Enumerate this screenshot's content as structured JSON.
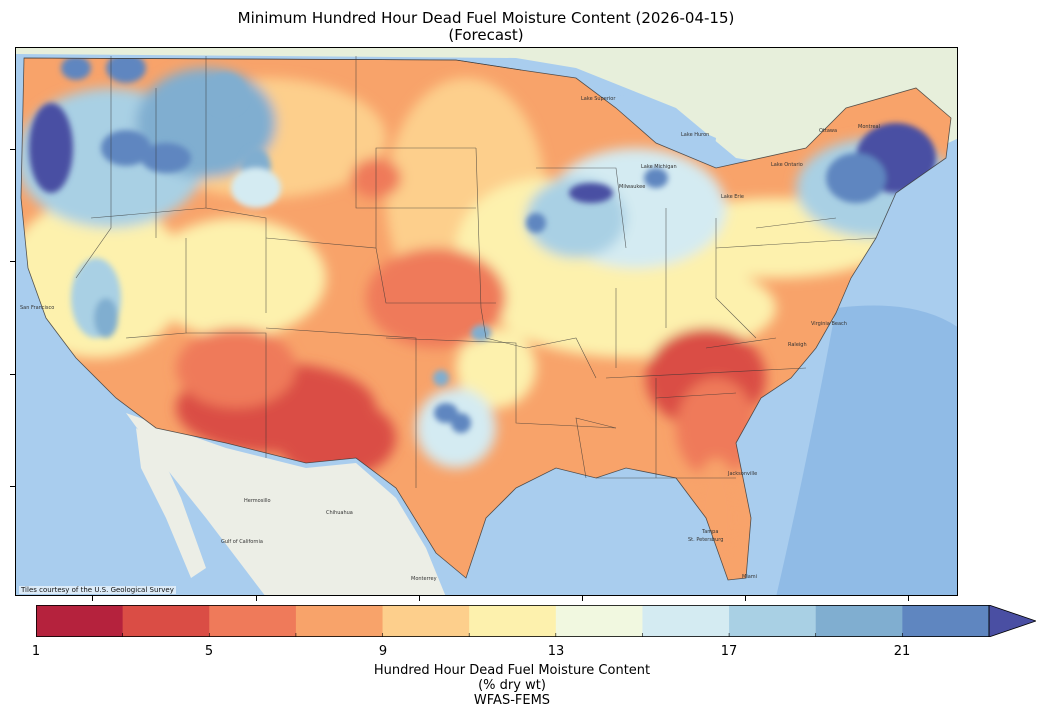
{
  "title": {
    "line1": "Minimum Hundred Hour Dead Fuel Moisture Content (2026-04-15)",
    "line2": "(Forecast)"
  },
  "map": {
    "credit": "Tiles courtesy of the U.S. Geological Survey",
    "place_labels": [
      "Hermosillo",
      "Chihuahua",
      "Monterrey",
      "Gulf of California",
      "Lake Superior",
      "Lake Michigan",
      "Lake Huron",
      "Lake Erie",
      "Lake Ontario",
      "Ottawa",
      "Montreal",
      "Milwaukee",
      "Jacksonville",
      "Tampa",
      "St. Petersburg",
      "Miami",
      "Virginia Beach",
      "Raleigh",
      "San Francisco"
    ],
    "colors": {
      "ocean": "#a9cdee",
      "land_mexico": "#eceee6",
      "land_canada": "#e7efdb",
      "great_lakes": "#a9cdee"
    }
  },
  "colorbar": {
    "ticks": [
      "1",
      "5",
      "9",
      "13",
      "17",
      "21"
    ],
    "bins": [
      {
        "from": 1,
        "to": 3,
        "color": "#b5223d"
      },
      {
        "from": 3,
        "to": 5,
        "color": "#da4d45"
      },
      {
        "from": 5,
        "to": 7,
        "color": "#ef7a5a"
      },
      {
        "from": 7,
        "to": 9,
        "color": "#f8a36a"
      },
      {
        "from": 9,
        "to": 11,
        "color": "#fdcf8c"
      },
      {
        "from": 11,
        "to": 13,
        "color": "#fdf1ad"
      },
      {
        "from": 13,
        "to": 15,
        "color": "#f1f8e0"
      },
      {
        "from": 15,
        "to": 17,
        "color": "#d4ebf2"
      },
      {
        "from": 17,
        "to": 19,
        "color": "#a9d0e4"
      },
      {
        "from": 19,
        "to": 21,
        "color": "#80aed0"
      },
      {
        "from": 21,
        "to": 23,
        "color": "#5f86c0"
      }
    ],
    "overflow_color": "#4a4fa3",
    "label_line1": "Hundred Hour Dead Fuel Moisture Content",
    "label_line2": "(% dry wt)",
    "label_line3": "WFAS-FEMS"
  }
}
